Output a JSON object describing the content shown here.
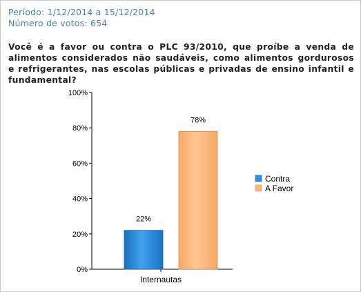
{
  "poll": {
    "period": "Período: 1/12/2014 a 15/12/2014",
    "votes": "Número de votos: 654",
    "question": "Você é a favor ou contra o PLC 93/2010, que proíbe a venda de alimentos considerados não saudáveis, como alimentos gordurosos e refrigerantes, nas escolas públicas e privadas de ensino infantil e fundamental?"
  },
  "chart_data": {
    "type": "bar",
    "categories": [
      "Internautas"
    ],
    "series": [
      {
        "name": "Contra",
        "values": [
          22
        ],
        "color": "#2f8fe0",
        "data_label": "22%"
      },
      {
        "name": "A Favor",
        "values": [
          78
        ],
        "color": "#ffb97a",
        "data_label": "78%"
      }
    ],
    "ylim": [
      0,
      100
    ],
    "yticks": [
      "0%",
      "20%",
      "40%",
      "60%",
      "80%",
      "100%"
    ],
    "legend_position": "right",
    "grid": false
  }
}
